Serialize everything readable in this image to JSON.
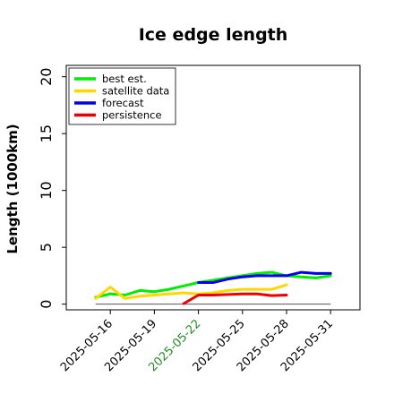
{
  "chart_data": {
    "type": "line",
    "title": "Ice edge length",
    "xlabel": "",
    "ylabel": "Length (1000km)",
    "ylim": [
      -0.5,
      21
    ],
    "yticks": [
      0,
      5,
      10,
      15,
      20
    ],
    "xlim_dates": [
      "2025-05-13",
      "2025-06-02"
    ],
    "xtick_labels": [
      "2025-05-16",
      "2025-05-19",
      "2025-05-22",
      "2025-05-25",
      "2025-05-28",
      "2025-05-31"
    ],
    "highlighted_xtick": "2025-05-22",
    "highlight_color": "#228b22",
    "grid": false,
    "legend_position": "top-left",
    "series": [
      {
        "name": "best est.",
        "color": "#00ee00",
        "points": [
          [
            "2025-05-15",
            0.6
          ],
          [
            "2025-05-16",
            0.9
          ],
          [
            "2025-05-17",
            0.8
          ],
          [
            "2025-05-18",
            1.2
          ],
          [
            "2025-05-19",
            1.1
          ],
          [
            "2025-05-20",
            1.3
          ],
          [
            "2025-05-21",
            1.6
          ],
          [
            "2025-05-22",
            1.9
          ],
          [
            "2025-05-23",
            2.1
          ],
          [
            "2025-05-24",
            2.3
          ],
          [
            "2025-05-25",
            2.5
          ],
          [
            "2025-05-26",
            2.7
          ],
          [
            "2025-05-27",
            2.8
          ],
          [
            "2025-05-28",
            2.5
          ],
          [
            "2025-05-29",
            2.4
          ],
          [
            "2025-05-30",
            2.3
          ],
          [
            "2025-05-31",
            2.5
          ]
        ]
      },
      {
        "name": "satellite data",
        "color": "#ffd700",
        "points": [
          [
            "2025-05-15",
            0.5
          ],
          [
            "2025-05-16",
            1.5
          ],
          [
            "2025-05-17",
            0.5
          ],
          [
            "2025-05-18",
            0.7
          ],
          [
            "2025-05-19",
            0.8
          ],
          [
            "2025-05-20",
            0.9
          ],
          [
            "2025-05-21",
            1.0
          ],
          [
            "2025-05-22",
            0.9
          ],
          [
            "2025-05-23",
            1.0
          ],
          [
            "2025-05-24",
            1.2
          ],
          [
            "2025-05-25",
            1.3
          ],
          [
            "2025-05-26",
            1.3
          ],
          [
            "2025-05-27",
            1.3
          ],
          [
            "2025-05-28",
            1.7
          ]
        ]
      },
      {
        "name": "forecast",
        "color": "#0000ee",
        "points": [
          [
            "2025-05-22",
            1.9
          ],
          [
            "2025-05-23",
            1.9
          ],
          [
            "2025-05-24",
            2.2
          ],
          [
            "2025-05-25",
            2.4
          ],
          [
            "2025-05-26",
            2.5
          ],
          [
            "2025-05-27",
            2.5
          ],
          [
            "2025-05-28",
            2.5
          ],
          [
            "2025-05-29",
            2.8
          ],
          [
            "2025-05-30",
            2.7
          ],
          [
            "2025-05-31",
            2.7
          ]
        ]
      },
      {
        "name": "persistence",
        "color": "#ee0000",
        "points": [
          [
            "2025-05-21",
            0.05
          ],
          [
            "2025-05-22",
            0.8
          ],
          [
            "2025-05-23",
            0.8
          ],
          [
            "2025-05-24",
            0.85
          ],
          [
            "2025-05-25",
            0.9
          ],
          [
            "2025-05-26",
            0.9
          ],
          [
            "2025-05-27",
            0.75
          ],
          [
            "2025-05-28",
            0.8
          ]
        ]
      }
    ]
  }
}
